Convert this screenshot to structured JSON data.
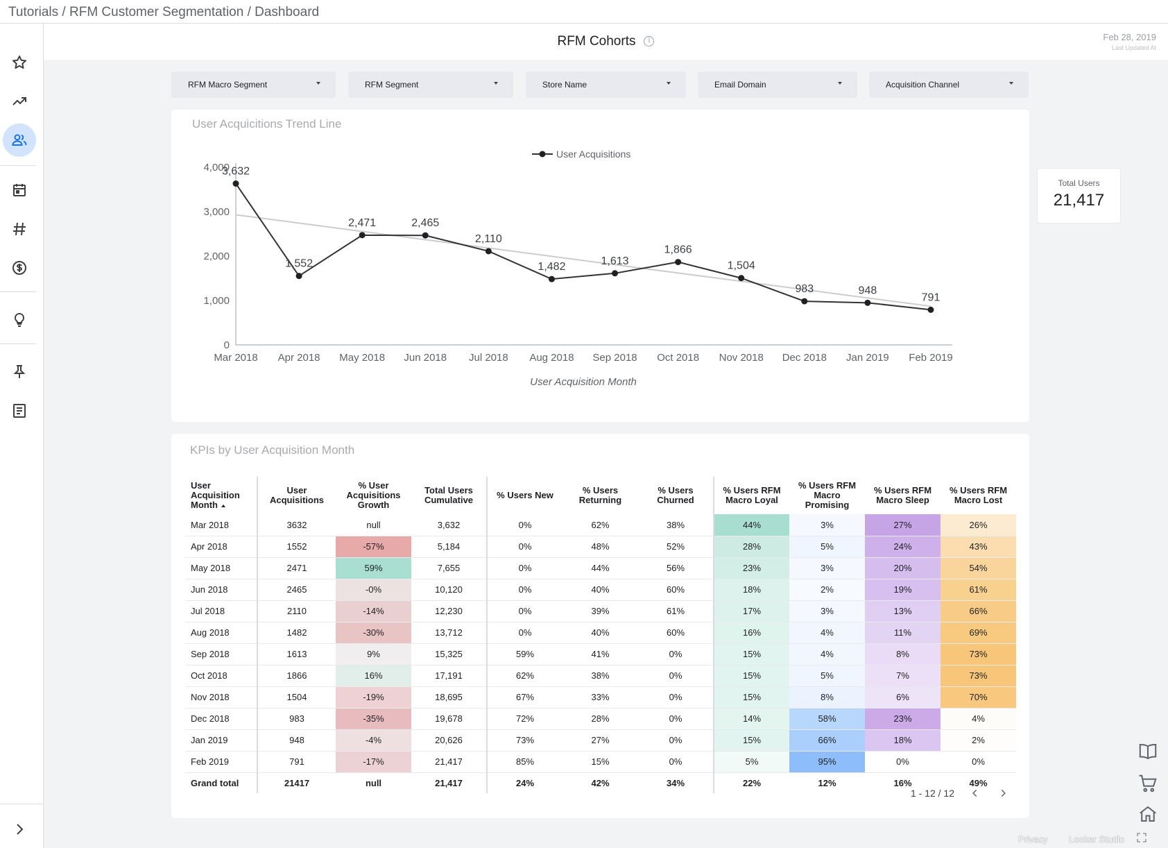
{
  "breadcrumb": "Tutorials / RFM Customer Segmentation / Dashboard",
  "sidebar": {
    "icons": [
      "star-icon",
      "trending-up-icon",
      "people-icon",
      "calendar-icon",
      "hashtag-icon",
      "dollar-icon",
      "lightbulb-icon",
      "pin-icon",
      "document-icon",
      "expand-chevron-icon"
    ],
    "active": "people-icon",
    "accent": "#1a73e8"
  },
  "header": {
    "title": "RFM Cohorts",
    "info": "i",
    "date": "Feb 28, 2019",
    "date_label": "Last Updated At"
  },
  "filters": [
    "RFM Macro Segment",
    "RFM Segment",
    "Store Name",
    "Email Domain",
    "Acquisition Channel"
  ],
  "trend": {
    "title": "User Acquicitions Trend Line",
    "kpi": {
      "label": "Total Users",
      "value": "21,417"
    }
  },
  "chart_data": {
    "type": "line",
    "categories": [
      "Mar 2018",
      "Apr 2018",
      "May 2018",
      "Jun 2018",
      "Jul 2018",
      "Aug 2018",
      "Sep 2018",
      "Oct 2018",
      "Nov 2018",
      "Dec 2018",
      "Jan 2019",
      "Feb 2019"
    ],
    "series": [
      {
        "name": "User Acquisitions",
        "values": [
          3632,
          1552,
          2471,
          2465,
          2110,
          1482,
          1613,
          1866,
          1504,
          983,
          948,
          791
        ],
        "color": "#333333"
      }
    ],
    "trendline": {
      "from": 2930,
      "to": 870,
      "color": "#cccccc"
    },
    "data_labels": [
      "3,632",
      "1,552",
      "2,471",
      "2,465",
      "2,110",
      "1,482",
      "1,613",
      "1,866",
      "1,504",
      "983",
      "948",
      "791"
    ],
    "yticks": [
      "0",
      "1,000",
      "2,000",
      "3,000",
      "4,000"
    ],
    "ylim": [
      0,
      4000
    ],
    "xlabel": "User Acquisition Month",
    "ylabel": "",
    "legend": "top-center",
    "grid": false
  },
  "table": {
    "title": "KPIs by User Acquisition Month",
    "headers": [
      "User Acquisition Month",
      "User Acquisitions",
      "% User Acquisitions Growth",
      "Total Users Cumulative",
      "% Users New",
      "% Users Returning",
      "% Users Churned",
      "% Users RFM Macro Loyal",
      "% Users RFM Macro Promising",
      "% Users RFM Macro Sleep",
      "% Users RFM Macro Lost"
    ],
    "rows": [
      [
        "Mar 2018",
        "3632",
        "null",
        "3,632",
        "0%",
        "62%",
        "38%",
        "44%",
        "3%",
        "27%",
        "26%"
      ],
      [
        "Apr 2018",
        "1552",
        "-57%",
        "5,184",
        "0%",
        "48%",
        "52%",
        "28%",
        "5%",
        "24%",
        "43%"
      ],
      [
        "May 2018",
        "2471",
        "59%",
        "7,655",
        "0%",
        "44%",
        "56%",
        "23%",
        "3%",
        "20%",
        "54%"
      ],
      [
        "Jun 2018",
        "2465",
        "-0%",
        "10,120",
        "0%",
        "40%",
        "60%",
        "18%",
        "2%",
        "19%",
        "61%"
      ],
      [
        "Jul 2018",
        "2110",
        "-14%",
        "12,230",
        "0%",
        "39%",
        "61%",
        "17%",
        "3%",
        "13%",
        "66%"
      ],
      [
        "Aug 2018",
        "1482",
        "-30%",
        "13,712",
        "0%",
        "40%",
        "60%",
        "16%",
        "4%",
        "11%",
        "69%"
      ],
      [
        "Sep 2018",
        "1613",
        "9%",
        "15,325",
        "59%",
        "41%",
        "0%",
        "15%",
        "4%",
        "8%",
        "73%"
      ],
      [
        "Oct 2018",
        "1866",
        "16%",
        "17,191",
        "62%",
        "38%",
        "0%",
        "15%",
        "5%",
        "7%",
        "73%"
      ],
      [
        "Nov 2018",
        "1504",
        "-19%",
        "18,695",
        "67%",
        "33%",
        "0%",
        "15%",
        "8%",
        "6%",
        "70%"
      ],
      [
        "Dec 2018",
        "983",
        "-35%",
        "19,678",
        "72%",
        "28%",
        "0%",
        "14%",
        "58%",
        "23%",
        "4%"
      ],
      [
        "Jan 2019",
        "948",
        "-4%",
        "20,626",
        "73%",
        "27%",
        "0%",
        "15%",
        "66%",
        "18%",
        "2%"
      ],
      [
        "Feb 2019",
        "791",
        "-17%",
        "21,417",
        "85%",
        "15%",
        "0%",
        "5%",
        "95%",
        "0%",
        "0%"
      ]
    ],
    "total": [
      "Grand total",
      "21417",
      "null",
      "21,417",
      "24%",
      "42%",
      "34%",
      "22%",
      "12%",
      "16%",
      "49%"
    ],
    "cell_colors": {
      "growth": [
        "#ffffff",
        "#e8a9a9",
        "#a8dfd0",
        "#ece2e2",
        "#e9cfd0",
        "#e9c4c5",
        "#f0eeee",
        "#e2eeea",
        "#eed1d3",
        "#e8bcbe",
        "#eedfe0",
        "#ecd2d4"
      ],
      "loyal": [
        "#a8ded0",
        "#cdebe2",
        "#d3eee6",
        "#ddf2ec",
        "#ddf2ec",
        "#e0f4ee",
        "#e2f4ef",
        "#e2f4ef",
        "#e2f4ef",
        "#e4f5f0",
        "#e2f4ef",
        "#f2faf7"
      ],
      "promising": [
        "#f5f9ff",
        "#eff6ff",
        "#f5f9ff",
        "#f7faff",
        "#f5f9ff",
        "#f2f7ff",
        "#f2f7ff",
        "#eff6ff",
        "#eaf3ff",
        "#b8d7fd",
        "#aacffd",
        "#8dbefb"
      ],
      "sleep": [
        "#c7a4e6",
        "#ceb0ea",
        "#d5bdee",
        "#d7c0ef",
        "#e0cef3",
        "#e4d4f4",
        "#eadcf6",
        "#ece0f7",
        "#eee4f8",
        "#ccaae8",
        "#dbc6f1",
        "#ffffff"
      ],
      "lost": [
        "#fcebd0",
        "#fbddb0",
        "#f9d59c",
        "#f8d18f",
        "#f8cc86",
        "#f7ca80",
        "#f7c679",
        "#f7c679",
        "#f7c87e",
        "#fefcf8",
        "#fefdfb",
        "#ffffff"
      ]
    },
    "pagination": "1 - 12 / 12"
  },
  "right_icons": [
    "book-icon",
    "cart-icon",
    "home-icon"
  ],
  "footer": {
    "privacy": "Privacy",
    "brand": "Looker Studio"
  }
}
